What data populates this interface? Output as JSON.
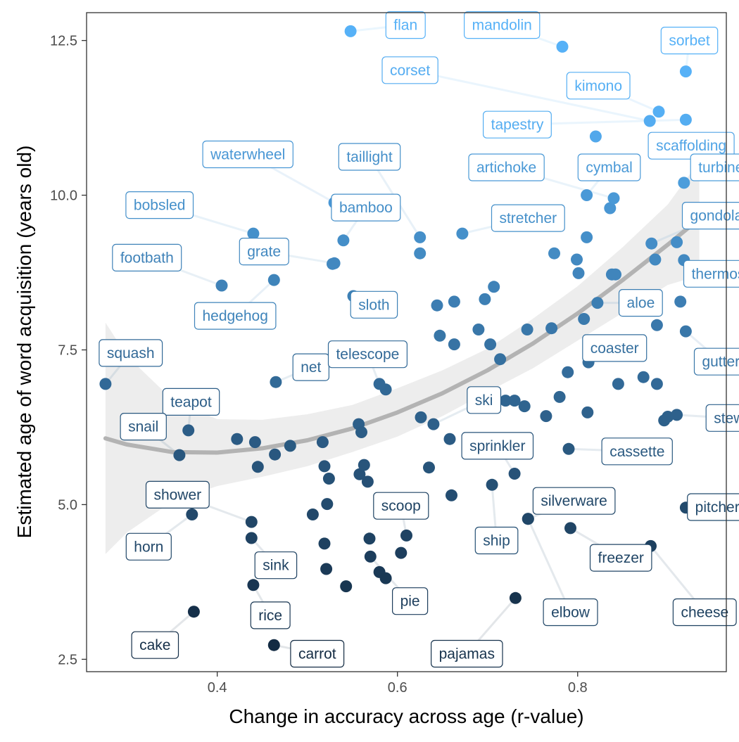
{
  "chart_data": {
    "type": "scatter",
    "xlabel": "Change in accuracy across age (r-value)",
    "ylabel": "Estimated age of word acquisition (years old)",
    "xlim": [
      0.255,
      0.965
    ],
    "ylim": [
      2.3,
      12.95
    ],
    "xticks": [
      {
        "value": 0.4,
        "label": "0.4"
      },
      {
        "value": 0.6,
        "label": "0.6"
      },
      {
        "value": 0.8,
        "label": "0.8"
      }
    ],
    "yticks": [
      {
        "value": 2.5,
        "label": "2.5"
      },
      {
        "value": 5.0,
        "label": "5.0"
      },
      {
        "value": 7.5,
        "label": "7.5"
      },
      {
        "value": 10.0,
        "label": "10.0"
      },
      {
        "value": 12.5,
        "label": "12.5"
      }
    ],
    "grid": false,
    "legend": "none",
    "color_scale": {
      "low_age": 3.0,
      "high_age": 11.5,
      "low_color": "#132b43",
      "high_color": "#56b1f7"
    },
    "trend": {
      "method": "loess",
      "color": "#b3b3b3",
      "band_color": "#ebebeb",
      "x": [
        0.276,
        0.3,
        0.35,
        0.4,
        0.45,
        0.5,
        0.55,
        0.6,
        0.65,
        0.7,
        0.75,
        0.8,
        0.85,
        0.9,
        0.935
      ],
      "y": [
        6.07,
        5.97,
        5.85,
        5.84,
        5.91,
        6.04,
        6.23,
        6.49,
        6.8,
        7.17,
        7.6,
        8.09,
        8.63,
        9.2,
        9.62
      ],
      "lower": [
        4.2,
        4.55,
        5.05,
        5.3,
        5.45,
        5.62,
        5.85,
        6.1,
        6.43,
        6.82,
        7.2,
        7.65,
        8.1,
        8.55,
        8.7
      ],
      "upper": [
        7.94,
        7.4,
        6.7,
        6.38,
        6.37,
        6.46,
        6.61,
        6.88,
        7.17,
        7.52,
        8.0,
        8.53,
        9.16,
        9.85,
        10.55
      ]
    },
    "labeled_points": [
      {
        "word": "flan",
        "x": 0.548,
        "y": 12.65,
        "lx": 0.609,
        "ly": 12.75
      },
      {
        "word": "mandolin",
        "x": 0.783,
        "y": 12.4,
        "lx": 0.716,
        "ly": 12.75
      },
      {
        "word": "sorbet",
        "x": 0.92,
        "y": 12.0,
        "lx": 0.924,
        "ly": 12.5
      },
      {
        "word": "corset",
        "x": 0.88,
        "y": 11.2,
        "lx": 0.614,
        "ly": 12.02
      },
      {
        "word": "kimono",
        "x": 0.89,
        "y": 11.35,
        "lx": 0.823,
        "ly": 11.77
      },
      {
        "word": "tapestry",
        "x": 0.92,
        "y": 11.22,
        "lx": 0.733,
        "ly": 11.14
      },
      {
        "word": "scaffolding",
        "x": 0.9,
        "y": 10.7,
        "lx": 0.926,
        "ly": 10.8
      },
      {
        "word": "waterwheel",
        "x": 0.53,
        "y": 9.88,
        "lx": 0.434,
        "ly": 10.66
      },
      {
        "word": "taillight",
        "x": 0.625,
        "y": 9.32,
        "lx": 0.569,
        "ly": 10.62
      },
      {
        "word": "artichoke",
        "x": 0.84,
        "y": 9.95,
        "lx": 0.721,
        "ly": 10.45
      },
      {
        "word": "cymbal",
        "x": 0.81,
        "y": 10.0,
        "lx": 0.835,
        "ly": 10.45
      },
      {
        "word": "turbine",
        "x": 0.918,
        "y": 10.2,
        "lx": 0.959,
        "ly": 10.45
      },
      {
        "word": "bobsled",
        "x": 0.44,
        "y": 9.38,
        "lx": 0.336,
        "ly": 9.84
      },
      {
        "word": "bamboo",
        "x": 0.54,
        "y": 9.27,
        "lx": 0.565,
        "ly": 9.8
      },
      {
        "word": "stretcher",
        "x": 0.672,
        "y": 9.38,
        "lx": 0.745,
        "ly": 9.63
      },
      {
        "word": "gondola",
        "x": 0.882,
        "y": 9.22,
        "lx": 0.954,
        "ly": 9.67
      },
      {
        "word": "footbath",
        "x": 0.405,
        "y": 8.54,
        "lx": 0.322,
        "ly": 8.99
      },
      {
        "word": "grate",
        "x": 0.53,
        "y": 8.9,
        "lx": 0.452,
        "ly": 9.09
      },
      {
        "word": "thermos",
        "x": 0.918,
        "y": 8.95,
        "lx": 0.956,
        "ly": 8.73
      },
      {
        "word": "hedgehog",
        "x": 0.463,
        "y": 8.63,
        "lx": 0.42,
        "ly": 8.05
      },
      {
        "word": "sloth",
        "x": 0.551,
        "y": 8.37,
        "lx": 0.574,
        "ly": 8.23
      },
      {
        "word": "aloe",
        "x": 0.822,
        "y": 8.26,
        "lx": 0.87,
        "ly": 8.26
      },
      {
        "word": "squash",
        "x": 0.276,
        "y": 6.95,
        "lx": 0.304,
        "ly": 7.45
      },
      {
        "word": "net",
        "x": 0.465,
        "y": 6.98,
        "lx": 0.504,
        "ly": 7.22
      },
      {
        "word": "telescope",
        "x": 0.58,
        "y": 6.95,
        "lx": 0.567,
        "ly": 7.43
      },
      {
        "word": "coaster",
        "x": 0.812,
        "y": 7.3,
        "lx": 0.841,
        "ly": 7.53
      },
      {
        "word": "gutter",
        "x": 0.92,
        "y": 7.8,
        "lx": 0.959,
        "ly": 7.31
      },
      {
        "word": "teapot",
        "x": 0.368,
        "y": 6.2,
        "lx": 0.371,
        "ly": 6.66
      },
      {
        "word": "ski",
        "x": 0.64,
        "y": 6.3,
        "lx": 0.696,
        "ly": 6.69
      },
      {
        "word": "stew",
        "x": 0.91,
        "y": 6.45,
        "lx": 0.968,
        "ly": 6.4
      },
      {
        "word": "snail",
        "x": 0.358,
        "y": 5.8,
        "lx": 0.318,
        "ly": 6.26
      },
      {
        "word": "sprinkler",
        "x": 0.73,
        "y": 5.5,
        "lx": 0.711,
        "ly": 5.95
      },
      {
        "word": "cassette",
        "x": 0.79,
        "y": 5.9,
        "lx": 0.866,
        "ly": 5.86
      },
      {
        "word": "shower",
        "x": 0.438,
        "y": 4.72,
        "lx": 0.356,
        "ly": 5.16
      },
      {
        "word": "scoop",
        "x": 0.61,
        "y": 4.5,
        "lx": 0.604,
        "ly": 4.98
      },
      {
        "word": "silverware",
        "x": 0.745,
        "y": 4.77,
        "lx": 0.796,
        "ly": 5.06
      },
      {
        "word": "pitcher",
        "x": 0.92,
        "y": 4.95,
        "lx": 0.955,
        "ly": 4.96
      },
      {
        "word": "horn",
        "x": 0.372,
        "y": 4.84,
        "lx": 0.324,
        "ly": 4.32
      },
      {
        "word": "sink",
        "x": 0.438,
        "y": 4.46,
        "lx": 0.465,
        "ly": 4.02
      },
      {
        "word": "ship",
        "x": 0.705,
        "y": 5.32,
        "lx": 0.71,
        "ly": 4.42
      },
      {
        "word": "freezer",
        "x": 0.792,
        "y": 4.62,
        "lx": 0.848,
        "ly": 4.14
      },
      {
        "word": "rice",
        "x": 0.44,
        "y": 3.7,
        "lx": 0.459,
        "ly": 3.21
      },
      {
        "word": "pie",
        "x": 0.57,
        "y": 4.16,
        "lx": 0.614,
        "ly": 3.44
      },
      {
        "word": "elbow",
        "x": 0.745,
        "y": 4.77,
        "lx": 0.792,
        "ly": 3.26
      },
      {
        "word": "cheese",
        "x": 0.881,
        "y": 4.33,
        "lx": 0.941,
        "ly": 3.26
      },
      {
        "word": "cake",
        "x": 0.374,
        "y": 3.27,
        "lx": 0.331,
        "ly": 2.73
      },
      {
        "word": "carrot",
        "x": 0.463,
        "y": 2.73,
        "lx": 0.511,
        "ly": 2.59
      },
      {
        "word": "pajamas",
        "x": 0.731,
        "y": 3.49,
        "lx": 0.677,
        "ly": 2.59
      }
    ],
    "unlabeled_points": [
      {
        "x": 0.625,
        "y": 9.06
      },
      {
        "x": 0.528,
        "y": 8.89
      },
      {
        "x": 0.774,
        "y": 9.06
      },
      {
        "x": 0.799,
        "y": 8.96
      },
      {
        "x": 0.801,
        "y": 8.74
      },
      {
        "x": 0.81,
        "y": 9.32
      },
      {
        "x": 0.836,
        "y": 9.79
      },
      {
        "x": 0.838,
        "y": 8.72
      },
      {
        "x": 0.842,
        "y": 8.72
      },
      {
        "x": 0.886,
        "y": 8.96
      },
      {
        "x": 0.91,
        "y": 9.24
      },
      {
        "x": 0.914,
        "y": 8.28
      },
      {
        "x": 0.82,
        "y": 10.95
      },
      {
        "x": 0.644,
        "y": 8.22
      },
      {
        "x": 0.663,
        "y": 8.28
      },
      {
        "x": 0.697,
        "y": 8.32
      },
      {
        "x": 0.707,
        "y": 8.52
      },
      {
        "x": 0.647,
        "y": 7.73
      },
      {
        "x": 0.663,
        "y": 7.59
      },
      {
        "x": 0.69,
        "y": 7.83
      },
      {
        "x": 0.703,
        "y": 7.59
      },
      {
        "x": 0.714,
        "y": 7.35
      },
      {
        "x": 0.744,
        "y": 7.83
      },
      {
        "x": 0.771,
        "y": 7.85
      },
      {
        "x": 0.807,
        "y": 8.0
      },
      {
        "x": 0.888,
        "y": 7.9
      },
      {
        "x": 0.587,
        "y": 6.86
      },
      {
        "x": 0.557,
        "y": 6.3
      },
      {
        "x": 0.56,
        "y": 6.17
      },
      {
        "x": 0.626,
        "y": 6.41
      },
      {
        "x": 0.72,
        "y": 6.68
      },
      {
        "x": 0.73,
        "y": 6.68
      },
      {
        "x": 0.741,
        "y": 6.59
      },
      {
        "x": 0.765,
        "y": 6.43
      },
      {
        "x": 0.78,
        "y": 6.74
      },
      {
        "x": 0.789,
        "y": 7.14
      },
      {
        "x": 0.811,
        "y": 6.49
      },
      {
        "x": 0.845,
        "y": 6.95
      },
      {
        "x": 0.873,
        "y": 7.06
      },
      {
        "x": 0.888,
        "y": 6.95
      },
      {
        "x": 0.896,
        "y": 6.36
      },
      {
        "x": 0.9,
        "y": 6.42
      },
      {
        "x": 0.422,
        "y": 6.06
      },
      {
        "x": 0.442,
        "y": 6.01
      },
      {
        "x": 0.517,
        "y": 6.01
      },
      {
        "x": 0.481,
        "y": 5.95
      },
      {
        "x": 0.464,
        "y": 5.81
      },
      {
        "x": 0.445,
        "y": 5.61
      },
      {
        "x": 0.519,
        "y": 5.62
      },
      {
        "x": 0.524,
        "y": 5.42
      },
      {
        "x": 0.558,
        "y": 5.49
      },
      {
        "x": 0.563,
        "y": 5.64
      },
      {
        "x": 0.567,
        "y": 5.37
      },
      {
        "x": 0.635,
        "y": 5.6
      },
      {
        "x": 0.658,
        "y": 6.06
      },
      {
        "x": 0.66,
        "y": 5.15
      },
      {
        "x": 0.522,
        "y": 5.01
      },
      {
        "x": 0.506,
        "y": 4.84
      },
      {
        "x": 0.519,
        "y": 4.37
      },
      {
        "x": 0.521,
        "y": 3.96
      },
      {
        "x": 0.543,
        "y": 3.68
      },
      {
        "x": 0.569,
        "y": 4.45
      },
      {
        "x": 0.58,
        "y": 3.91
      },
      {
        "x": 0.587,
        "y": 3.81
      },
      {
        "x": 0.604,
        "y": 4.22
      }
    ]
  }
}
